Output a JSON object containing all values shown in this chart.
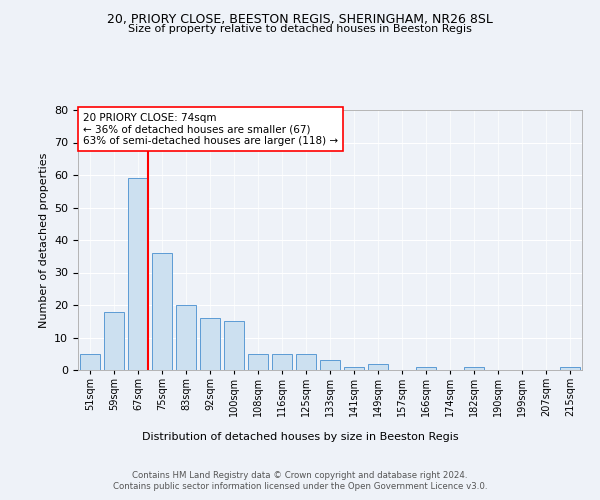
{
  "title1": "20, PRIORY CLOSE, BEESTON REGIS, SHERINGHAM, NR26 8SL",
  "title2": "Size of property relative to detached houses in Beeston Regis",
  "xlabel": "Distribution of detached houses by size in Beeston Regis",
  "ylabel": "Number of detached properties",
  "categories": [
    "51sqm",
    "59sqm",
    "67sqm",
    "75sqm",
    "83sqm",
    "92sqm",
    "100sqm",
    "108sqm",
    "116sqm",
    "125sqm",
    "133sqm",
    "141sqm",
    "149sqm",
    "157sqm",
    "166sqm",
    "174sqm",
    "182sqm",
    "190sqm",
    "199sqm",
    "207sqm",
    "215sqm"
  ],
  "values": [
    5,
    18,
    59,
    36,
    20,
    16,
    15,
    5,
    5,
    5,
    3,
    1,
    2,
    0,
    1,
    0,
    1,
    0,
    0,
    0,
    1
  ],
  "bar_color": "#cce0f0",
  "bar_edge_color": "#5b9bd5",
  "ylim": [
    0,
    80
  ],
  "yticks": [
    0,
    10,
    20,
    30,
    40,
    50,
    60,
    70,
    80
  ],
  "annotation_text": "20 PRIORY CLOSE: 74sqm\n← 36% of detached houses are smaller (67)\n63% of semi-detached houses are larger (118) →",
  "footer1": "Contains HM Land Registry data © Crown copyright and database right 2024.",
  "footer2": "Contains public sector information licensed under the Open Government Licence v3.0.",
  "bg_color": "#eef2f8",
  "plot_bg_color": "#eef2f8"
}
